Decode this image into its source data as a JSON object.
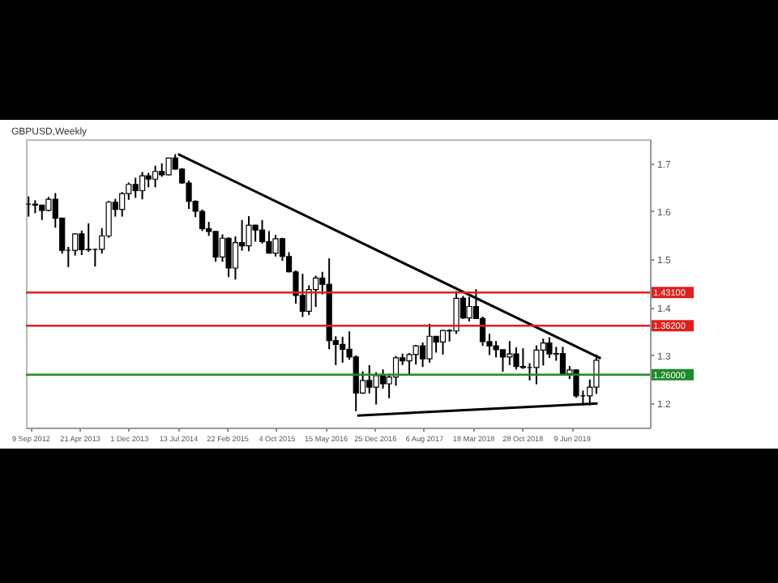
{
  "chart_data": {
    "type": "candlestick",
    "title": "GBPUSD,Weekly",
    "x": [
      "2012-09",
      "2012-10",
      "2012-11",
      "2012-12",
      "2013-01",
      "2013-02",
      "2013-03",
      "2013-04",
      "2013-05",
      "2013-06",
      "2013-07",
      "2013-08",
      "2013-09",
      "2013-10",
      "2013-11",
      "2013-12",
      "2014-01",
      "2014-02",
      "2014-03",
      "2014-04",
      "2014-05",
      "2014-06",
      "2014-07",
      "2014-08",
      "2014-09",
      "2014-10",
      "2014-11",
      "2014-12",
      "2015-01",
      "2015-02",
      "2015-03",
      "2015-04",
      "2015-05",
      "2015-06",
      "2015-07",
      "2015-08",
      "2015-09",
      "2015-10",
      "2015-11",
      "2015-12",
      "2016-01",
      "2016-02",
      "2016-03",
      "2016-04",
      "2016-05",
      "2016-06",
      "2016-07",
      "2016-08",
      "2016-09",
      "2016-10",
      "2016-11",
      "2016-12",
      "2017-01",
      "2017-02",
      "2017-03",
      "2017-04",
      "2017-05",
      "2017-06",
      "2017-07",
      "2017-08",
      "2017-09",
      "2017-10",
      "2017-11",
      "2017-12",
      "2018-01",
      "2018-02",
      "2018-03",
      "2018-04",
      "2018-05",
      "2018-06",
      "2018-07",
      "2018-08",
      "2018-09",
      "2018-10",
      "2018-11",
      "2018-12",
      "2019-01",
      "2019-02",
      "2019-03",
      "2019-04",
      "2019-05",
      "2019-06",
      "2019-07",
      "2019-08",
      "2019-09",
      "2019-10"
    ],
    "ohlc": [
      [
        1.615,
        1.631,
        1.589,
        1.615
      ],
      [
        1.615,
        1.623,
        1.596,
        1.613
      ],
      [
        1.613,
        1.613,
        1.582,
        1.602
      ],
      [
        1.602,
        1.63,
        1.6,
        1.625
      ],
      [
        1.625,
        1.638,
        1.566,
        1.586
      ],
      [
        1.586,
        1.586,
        1.512,
        1.519
      ],
      [
        1.519,
        1.526,
        1.484,
        1.519
      ],
      [
        1.519,
        1.554,
        1.508,
        1.553
      ],
      [
        1.553,
        1.56,
        1.509,
        1.52
      ],
      [
        1.52,
        1.575,
        1.516,
        1.521
      ],
      [
        1.521,
        1.522,
        1.485,
        1.521
      ],
      [
        1.521,
        1.565,
        1.512,
        1.549
      ],
      [
        1.549,
        1.622,
        1.545,
        1.619
      ],
      [
        1.619,
        1.626,
        1.589,
        1.604
      ],
      [
        1.604,
        1.64,
        1.589,
        1.637
      ],
      [
        1.637,
        1.66,
        1.624,
        1.656
      ],
      [
        1.656,
        1.67,
        1.628,
        1.643
      ],
      [
        1.643,
        1.682,
        1.625,
        1.674
      ],
      [
        1.674,
        1.68,
        1.65,
        1.667
      ],
      [
        1.667,
        1.695,
        1.65,
        1.683
      ],
      [
        1.683,
        1.7,
        1.672,
        1.676
      ],
      [
        1.676,
        1.711,
        1.675,
        1.711
      ],
      [
        1.711,
        1.719,
        1.687,
        1.688
      ],
      [
        1.688,
        1.69,
        1.657,
        1.659
      ],
      [
        1.659,
        1.664,
        1.605,
        1.621
      ],
      [
        1.621,
        1.623,
        1.588,
        1.6
      ],
      [
        1.6,
        1.604,
        1.559,
        1.564
      ],
      [
        1.564,
        1.578,
        1.549,
        1.558
      ],
      [
        1.558,
        1.559,
        1.495,
        1.505
      ],
      [
        1.505,
        1.552,
        1.495,
        1.544
      ],
      [
        1.544,
        1.546,
        1.463,
        1.482
      ],
      [
        1.482,
        1.548,
        1.458,
        1.535
      ],
      [
        1.535,
        1.582,
        1.518,
        1.528
      ],
      [
        1.528,
        1.59,
        1.517,
        1.571
      ],
      [
        1.571,
        1.572,
        1.537,
        1.561
      ],
      [
        1.561,
        1.582,
        1.533,
        1.537
      ],
      [
        1.537,
        1.559,
        1.512,
        1.513
      ],
      [
        1.513,
        1.551,
        1.506,
        1.543
      ],
      [
        1.543,
        1.545,
        1.497,
        1.506
      ],
      [
        1.506,
        1.515,
        1.473,
        1.474
      ],
      [
        1.474,
        1.477,
        1.408,
        1.425
      ],
      [
        1.425,
        1.47,
        1.38,
        1.392
      ],
      [
        1.392,
        1.446,
        1.384,
        1.437
      ],
      [
        1.437,
        1.466,
        1.401,
        1.461
      ],
      [
        1.461,
        1.474,
        1.427,
        1.448
      ],
      [
        1.448,
        1.502,
        1.313,
        1.331
      ],
      [
        1.331,
        1.34,
        1.28,
        1.323
      ],
      [
        1.323,
        1.339,
        1.285,
        1.313
      ],
      [
        1.313,
        1.35,
        1.291,
        1.297
      ],
      [
        1.297,
        1.3,
        1.184,
        1.222
      ],
      [
        1.222,
        1.267,
        1.22,
        1.248
      ],
      [
        1.248,
        1.28,
        1.221,
        1.234
      ],
      [
        1.234,
        1.265,
        1.198,
        1.258
      ],
      [
        1.258,
        1.271,
        1.231,
        1.241
      ],
      [
        1.241,
        1.262,
        1.211,
        1.255
      ],
      [
        1.255,
        1.299,
        1.237,
        1.295
      ],
      [
        1.295,
        1.304,
        1.28,
        1.289
      ],
      [
        1.289,
        1.305,
        1.259,
        1.302
      ],
      [
        1.302,
        1.322,
        1.281,
        1.32
      ],
      [
        1.32,
        1.327,
        1.276,
        1.293
      ],
      [
        1.293,
        1.366,
        1.285,
        1.34
      ],
      [
        1.34,
        1.34,
        1.306,
        1.328
      ],
      [
        1.328,
        1.353,
        1.302,
        1.352
      ],
      [
        1.352,
        1.355,
        1.329,
        1.351
      ],
      [
        1.351,
        1.434,
        1.345,
        1.419
      ],
      [
        1.419,
        1.424,
        1.376,
        1.378
      ],
      [
        1.378,
        1.422,
        1.371,
        1.402
      ],
      [
        1.402,
        1.438,
        1.376,
        1.377
      ],
      [
        1.377,
        1.381,
        1.32,
        1.329
      ],
      [
        1.329,
        1.345,
        1.301,
        1.32
      ],
      [
        1.32,
        1.33,
        1.296,
        1.312
      ],
      [
        1.312,
        1.312,
        1.266,
        1.297
      ],
      [
        1.297,
        1.33,
        1.28,
        1.303
      ],
      [
        1.303,
        1.317,
        1.271,
        1.277
      ],
      [
        1.277,
        1.315,
        1.272,
        1.275
      ],
      [
        1.275,
        1.284,
        1.248,
        1.275
      ],
      [
        1.275,
        1.321,
        1.24,
        1.311
      ],
      [
        1.311,
        1.335,
        1.279,
        1.326
      ],
      [
        1.326,
        1.338,
        1.295,
        1.303
      ],
      [
        1.303,
        1.318,
        1.289,
        1.304
      ],
      [
        1.304,
        1.318,
        1.26,
        1.262
      ],
      [
        1.262,
        1.278,
        1.251,
        1.27
      ],
      [
        1.27,
        1.27,
        1.212,
        1.216
      ],
      [
        1.216,
        1.227,
        1.196,
        1.216
      ],
      [
        1.216,
        1.25,
        1.196,
        1.234
      ],
      [
        1.234,
        1.302,
        1.22,
        1.29
      ]
    ],
    "series": [
      {
        "type": "line",
        "color": "#000000",
        "x": [
          "2014-07-14",
          "2019-10-21"
        ],
        "values": [
          1.719,
          1.294
        ]
      },
      {
        "type": "line",
        "color": "#000000",
        "x": [
          "2016-10-07",
          "2019-10-07"
        ],
        "values": [
          1.175,
          1.2
        ]
      }
    ],
    "xlim": [
      "2012-08-20",
      "2020-06-01"
    ],
    "xticks": [
      {
        "value": "2012-09-09",
        "label": "9 Sep 2012"
      },
      {
        "value": "2013-04-21",
        "label": "21 Apr 2013"
      },
      {
        "value": "2013-12-01",
        "label": "1 Dec 2013"
      },
      {
        "value": "2014-07-13",
        "label": "13 Jul 2014"
      },
      {
        "value": "2015-02-22",
        "label": "22 Feb 2015"
      },
      {
        "value": "2015-10-04",
        "label": "4 Oct 2015"
      },
      {
        "value": "2016-05-15",
        "label": "15 May 2016"
      },
      {
        "value": "2016-12-25",
        "label": "25 Dec 2016"
      },
      {
        "value": "2017-08-06",
        "label": "6 Aug 2017"
      },
      {
        "value": "2018-03-18",
        "label": "18 Mar 2018"
      },
      {
        "value": "2018-10-28",
        "label": "28 Oct 2018"
      },
      {
        "value": "2019-06-09",
        "label": "9 Jun 2019"
      }
    ],
    "ylim": [
      1.15,
      1.75
    ],
    "yticks": [
      1.2,
      1.3,
      1.4,
      1.5,
      1.6,
      1.7
    ],
    "ref_lines": [
      {
        "axis": "y",
        "value": 1.431,
        "label": "1.43100",
        "color": "#e0201c"
      },
      {
        "axis": "y",
        "value": 1.362,
        "label": "1.36200",
        "color": "#e0201c"
      },
      {
        "axis": "y",
        "value": 1.26,
        "label": "1.26000",
        "color": "#1f8a2a"
      }
    ]
  }
}
